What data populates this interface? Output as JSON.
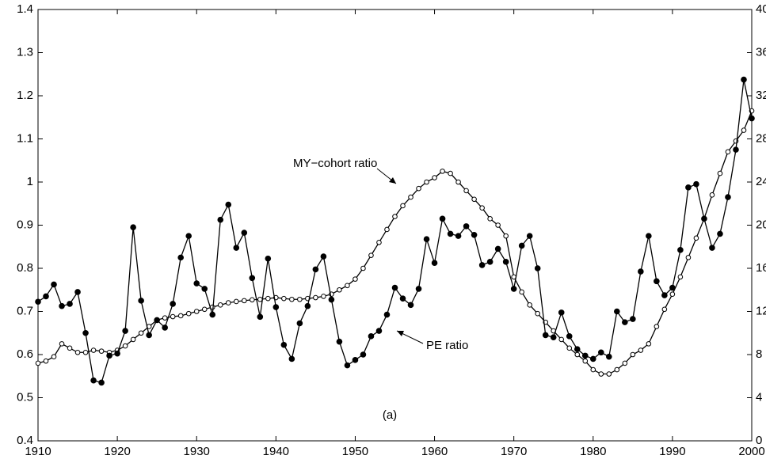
{
  "chart_data": {
    "type": "line",
    "x": [
      1910,
      1911,
      1912,
      1913,
      1914,
      1915,
      1916,
      1917,
      1918,
      1919,
      1920,
      1921,
      1922,
      1923,
      1924,
      1925,
      1926,
      1927,
      1928,
      1929,
      1930,
      1931,
      1932,
      1933,
      1934,
      1935,
      1936,
      1937,
      1938,
      1939,
      1940,
      1941,
      1942,
      1943,
      1944,
      1945,
      1946,
      1947,
      1948,
      1949,
      1950,
      1951,
      1952,
      1953,
      1954,
      1955,
      1956,
      1957,
      1958,
      1959,
      1960,
      1961,
      1962,
      1963,
      1964,
      1965,
      1966,
      1967,
      1968,
      1969,
      1970,
      1971,
      1972,
      1973,
      1974,
      1975,
      1976,
      1977,
      1978,
      1979,
      1980,
      1981,
      1982,
      1983,
      1984,
      1985,
      1986,
      1987,
      1988,
      1989,
      1990,
      1991,
      1992,
      1993,
      1994,
      1995,
      1996,
      1997,
      1998,
      1999,
      2000
    ],
    "xlim": [
      1910,
      2000
    ],
    "xticks": [
      1910,
      1920,
      1930,
      1940,
      1950,
      1960,
      1970,
      1980,
      1990,
      2000
    ],
    "ylim": [
      0.4,
      1.4
    ],
    "yticks": [
      0.4,
      0.5,
      0.6,
      0.7,
      0.8,
      0.9,
      1,
      1.1,
      1.2,
      1.3,
      1.4
    ],
    "y2lim": [
      0,
      40
    ],
    "y2ticks": [
      0,
      4,
      8,
      12,
      16,
      20,
      24,
      28,
      32,
      36,
      40
    ],
    "series": [
      {
        "name": "MY−cohort ratio",
        "color": "#000000",
        "marker": "open-circle",
        "values": [
          0.58,
          0.585,
          0.595,
          0.625,
          0.615,
          0.605,
          0.605,
          0.61,
          0.608,
          0.605,
          0.61,
          0.62,
          0.635,
          0.65,
          0.665,
          0.68,
          0.685,
          0.688,
          0.69,
          0.695,
          0.7,
          0.705,
          0.71,
          0.715,
          0.72,
          0.723,
          0.725,
          0.727,
          0.728,
          0.73,
          0.732,
          0.73,
          0.728,
          0.728,
          0.73,
          0.732,
          0.735,
          0.74,
          0.75,
          0.76,
          0.775,
          0.8,
          0.83,
          0.86,
          0.89,
          0.92,
          0.945,
          0.965,
          0.985,
          1.0,
          1.01,
          1.025,
          1.02,
          1.0,
          0.98,
          0.96,
          0.94,
          0.915,
          0.9,
          0.875,
          0.78,
          0.745,
          0.715,
          0.695,
          0.675,
          0.655,
          0.635,
          0.615,
          0.6,
          0.585,
          0.565,
          0.555,
          0.555,
          0.565,
          0.58,
          0.6,
          0.61,
          0.625,
          0.665,
          0.705,
          0.74,
          0.78,
          0.825,
          0.87,
          0.915,
          0.97,
          1.02,
          1.07,
          1.095,
          1.12,
          1.165
        ]
      },
      {
        "name": "PE ratio",
        "color": "#000000",
        "marker": "filled-circle",
        "axis": "y2",
        "values": [
          12.9,
          13.4,
          14.5,
          12.5,
          12.7,
          13.8,
          10,
          5.6,
          5.4,
          7.9,
          8.1,
          10.2,
          19.8,
          13,
          9.8,
          11.2,
          10.5,
          12.7,
          17,
          19,
          14.6,
          14.1,
          11.7,
          20.5,
          21.9,
          17.9,
          19.3,
          15.1,
          11.5,
          16.9,
          12.4,
          8.9,
          7.6,
          10.9,
          12.5,
          15.9,
          17.1,
          13.1,
          9.2,
          7,
          7.5,
          8,
          9.7,
          10.2,
          11.7,
          14.2,
          13.2,
          12.6,
          14.1,
          18.7,
          16.5,
          20.6,
          19.2,
          19,
          19.9,
          19.1,
          16.3,
          16.6,
          17.8,
          16.6,
          14.1,
          18.1,
          19,
          16,
          9.8,
          9.6,
          11.9,
          9.7,
          8.5,
          7.9,
          7.6,
          8.2,
          7.8,
          12,
          11,
          11.3,
          15.7,
          19,
          14.8,
          13.5,
          14.2,
          17.7,
          23.5,
          23.8,
          20.6,
          17.9,
          19.2,
          22.6,
          27,
          33.5,
          29.9
        ]
      }
    ],
    "annotations": [
      "(a)"
    ]
  }
}
